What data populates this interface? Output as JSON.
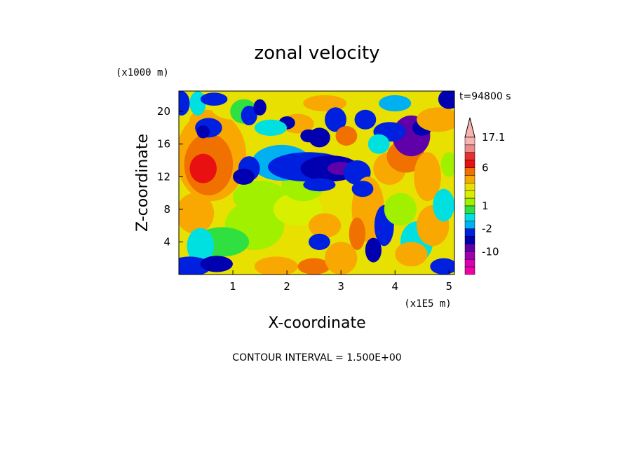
{
  "chart_data": {
    "type": "heatmap",
    "title": "zonal velocity",
    "xlabel": "X-coordinate",
    "ylabel": "Z-coordinate",
    "x_scale_label": "(x1E5 m)",
    "z_scale_label": "(x1000 m)",
    "time_label": "t=94800 s",
    "footer": "CONTOUR INTERVAL = 1.500E+00",
    "xlim": [
      0.0,
      5.1
    ],
    "ylim": [
      0.0,
      22.5
    ],
    "x_ticks": [
      "1",
      "2",
      "3",
      "4",
      "5"
    ],
    "y_ticks": [
      "4",
      "8",
      "12",
      "16",
      "20"
    ],
    "colorbar": {
      "labels": [
        "17.1",
        "6",
        "1",
        "-2",
        "-10"
      ],
      "levels_desc": [
        17.1,
        15,
        12,
        9,
        6,
        4.5,
        3,
        2,
        1.5,
        1,
        0.5,
        -0.5,
        -2,
        -3.5,
        -6,
        -10,
        -14,
        -18
      ],
      "colors": [
        "#f8b4b0",
        "#f08a88",
        "#e83030",
        "#e81010",
        "#f07000",
        "#f8a800",
        "#e8e000",
        "#d8f000",
        "#a0f000",
        "#30e040",
        "#00e0e0",
        "#00b0f0",
        "#0020e0",
        "#0000b0",
        "#6000a8",
        "#a000b0",
        "#d800b0",
        "#f000a8"
      ]
    },
    "field_description": "zonal velocity field (m/s) on x-z grid; positive warm colors, negative cool colors"
  }
}
